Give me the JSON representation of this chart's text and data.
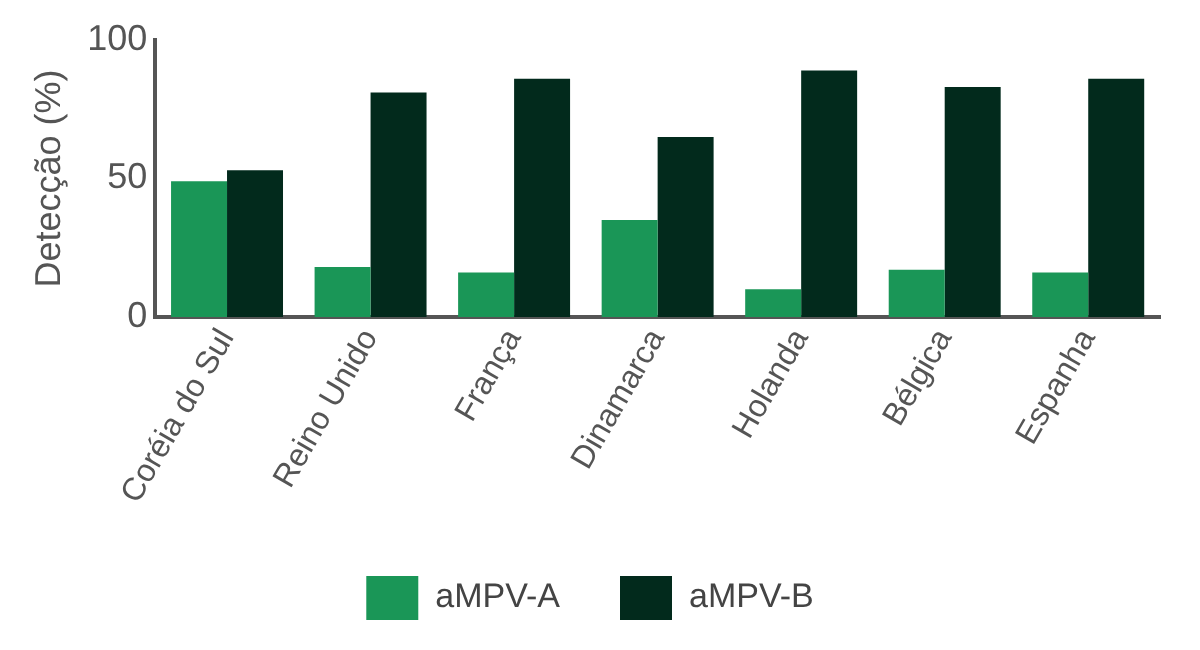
{
  "chart_data": {
    "type": "bar",
    "ylabel": "Detecção (%)",
    "categories": [
      "Coréia do Sul",
      "Reino Unido",
      "França",
      "Dinamarca",
      "Holanda",
      "Bélgica",
      "Espanha"
    ],
    "series": [
      {
        "name": "aMPV-A",
        "color": "#1a9657",
        "values": [
          49,
          18,
          16,
          35,
          10,
          17,
          16
        ]
      },
      {
        "name": "aMPV-B",
        "color": "#022a1c",
        "values": [
          53,
          81,
          86,
          65,
          89,
          83,
          86
        ]
      }
    ],
    "ylim": [
      0,
      100
    ],
    "yticks": [
      0,
      50,
      100
    ],
    "grid": false,
    "legend": "bottom"
  }
}
